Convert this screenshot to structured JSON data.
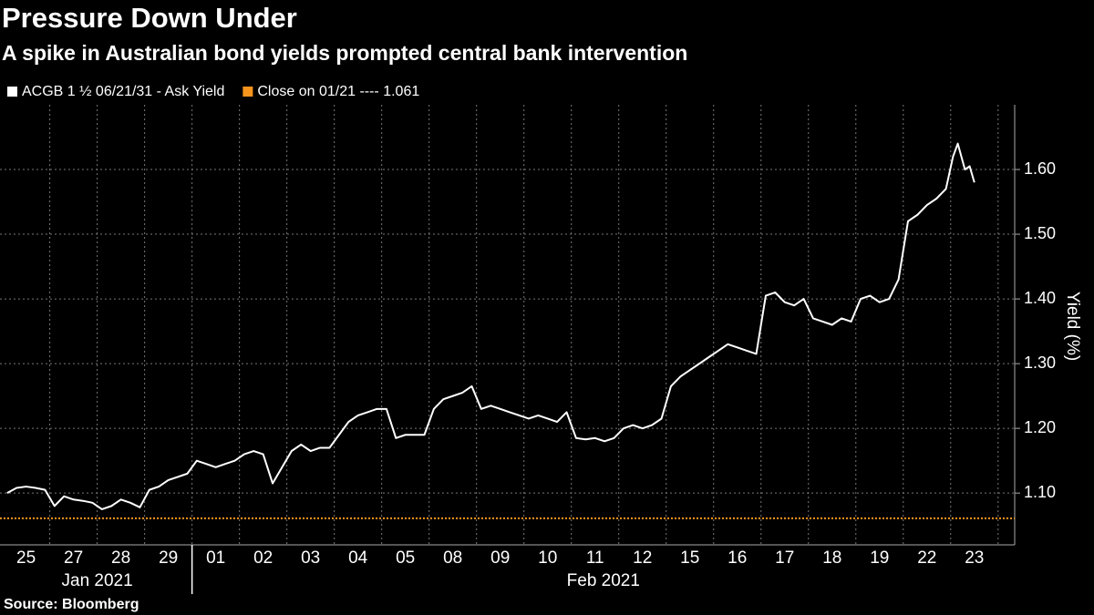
{
  "chart_data": {
    "type": "line",
    "title": "Pressure Down Under",
    "subtitle": "A spike in Australian bond yields prompted central bank intervention",
    "y_label": "Yield (%)",
    "source": "Source: Bloomberg",
    "grid": true,
    "xlim": [
      -0.05,
      21.35
    ],
    "xticks": [
      {
        "value": 0.5,
        "label": "25"
      },
      {
        "value": 1.5,
        "label": "27"
      },
      {
        "value": 2.5,
        "label": "28"
      },
      {
        "value": 3.5,
        "label": "29"
      },
      {
        "value": 4.5,
        "label": "01"
      },
      {
        "value": 5.5,
        "label": "02"
      },
      {
        "value": 6.5,
        "label": "03"
      },
      {
        "value": 7.5,
        "label": "04"
      },
      {
        "value": 8.5,
        "label": "05"
      },
      {
        "value": 9.5,
        "label": "08"
      },
      {
        "value": 10.5,
        "label": "09"
      },
      {
        "value": 11.5,
        "label": "10"
      },
      {
        "value": 12.5,
        "label": "11"
      },
      {
        "value": 13.5,
        "label": "12"
      },
      {
        "value": 14.5,
        "label": "15"
      },
      {
        "value": 15.5,
        "label": "16"
      },
      {
        "value": 16.5,
        "label": "17"
      },
      {
        "value": 17.5,
        "label": "18"
      },
      {
        "value": 18.5,
        "label": "19"
      },
      {
        "value": 19.5,
        "label": "22"
      },
      {
        "value": 20.5,
        "label": "23"
      }
    ],
    "x_groups": [
      {
        "label": "Jan 2021",
        "from": 0,
        "to": 4
      },
      {
        "label": "Feb 2021",
        "from": 4,
        "to": 21.35
      }
    ],
    "ylim": [
      1.02,
      1.7
    ],
    "yticks": [
      {
        "value": 1.1,
        "label": "1.10"
      },
      {
        "value": 1.2,
        "label": "1.20"
      },
      {
        "value": 1.3,
        "label": "1.30"
      },
      {
        "value": 1.4,
        "label": "1.40"
      },
      {
        "value": 1.5,
        "label": "1.50"
      },
      {
        "value": 1.6,
        "label": "1.60"
      }
    ],
    "x": [
      0.1,
      0.3,
      0.5,
      0.7,
      0.9,
      1.1,
      1.3,
      1.5,
      1.7,
      1.9,
      2.1,
      2.3,
      2.5,
      2.7,
      2.9,
      3.1,
      3.3,
      3.5,
      3.7,
      3.9,
      4.1,
      4.3,
      4.5,
      4.7,
      4.9,
      5.1,
      5.3,
      5.5,
      5.7,
      5.9,
      6.1,
      6.3,
      6.5,
      6.7,
      6.9,
      7.1,
      7.3,
      7.5,
      7.7,
      7.9,
      8.1,
      8.3,
      8.5,
      8.7,
      8.9,
      9.1,
      9.3,
      9.5,
      9.7,
      9.9,
      10.1,
      10.3,
      10.5,
      10.7,
      10.9,
      11.1,
      11.3,
      11.5,
      11.7,
      11.9,
      12.1,
      12.3,
      12.5,
      12.7,
      12.9,
      13.1,
      13.3,
      13.5,
      13.7,
      13.9,
      14.1,
      14.3,
      14.5,
      14.7,
      14.9,
      15.1,
      15.3,
      15.5,
      15.7,
      15.9,
      16.1,
      16.3,
      16.5,
      16.7,
      16.9,
      17.1,
      17.3,
      17.5,
      17.7,
      17.9,
      18.1,
      18.3,
      18.5,
      18.7,
      18.9,
      19.1,
      19.3,
      19.5,
      19.7,
      19.9,
      20.05,
      20.15,
      20.3,
      20.4,
      20.5
    ],
    "series": [
      {
        "name": "ACGB 1 ½ 06/21/31 - Ask Yield",
        "color": "#ffffff",
        "values": [
          1.1,
          1.108,
          1.11,
          1.108,
          1.105,
          1.08,
          1.095,
          1.09,
          1.088,
          1.085,
          1.075,
          1.08,
          1.09,
          1.085,
          1.078,
          1.105,
          1.11,
          1.12,
          1.125,
          1.13,
          1.15,
          1.145,
          1.14,
          1.145,
          1.15,
          1.16,
          1.165,
          1.16,
          1.115,
          1.14,
          1.165,
          1.175,
          1.165,
          1.17,
          1.17,
          1.19,
          1.21,
          1.22,
          1.225,
          1.23,
          1.23,
          1.185,
          1.19,
          1.19,
          1.19,
          1.23,
          1.245,
          1.25,
          1.255,
          1.265,
          1.23,
          1.235,
          1.23,
          1.225,
          1.22,
          1.215,
          1.22,
          1.215,
          1.21,
          1.225,
          1.185,
          1.183,
          1.185,
          1.18,
          1.185,
          1.2,
          1.205,
          1.2,
          1.205,
          1.215,
          1.265,
          1.28,
          1.29,
          1.3,
          1.31,
          1.32,
          1.33,
          1.325,
          1.32,
          1.315,
          1.405,
          1.41,
          1.395,
          1.39,
          1.4,
          1.37,
          1.365,
          1.36,
          1.37,
          1.365,
          1.4,
          1.405,
          1.395,
          1.4,
          1.43,
          1.52,
          1.53,
          1.545,
          1.555,
          1.57,
          1.62,
          1.64,
          1.6,
          1.605,
          1.58
        ]
      }
    ],
    "reference_line": {
      "name": "Close on 01/21 ---- 1.061",
      "value": 1.061,
      "color": "#f7941d"
    }
  }
}
